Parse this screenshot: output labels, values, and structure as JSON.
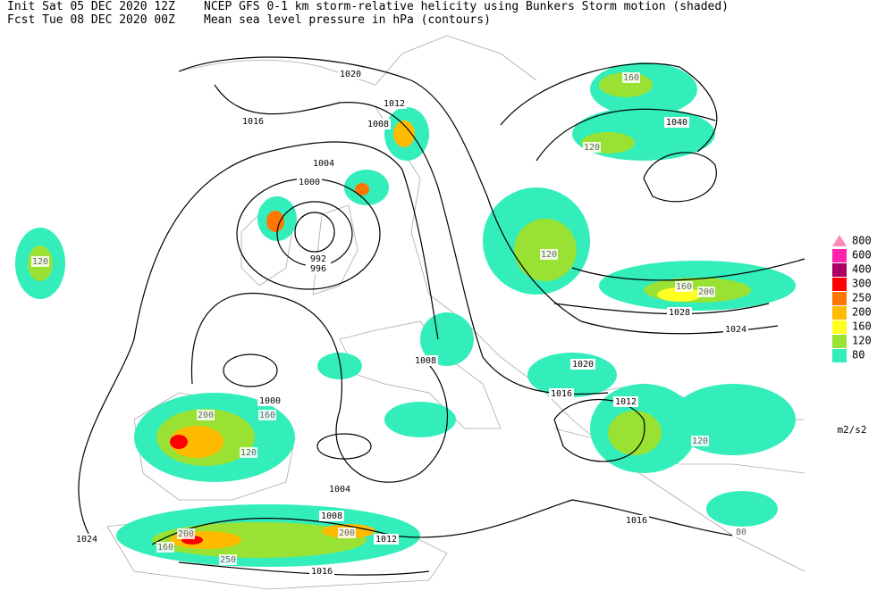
{
  "header": {
    "init": "Init  Sat 05 DEC 2020 12Z",
    "product": "NCEP GFS 0-1 km storm-relative helicity using Bunkers Storm motion (shaded)",
    "fcst": "Fcst Tue 08 DEC 2020 00Z",
    "contours": "Mean sea level pressure in hPa (contours)"
  },
  "legend": {
    "unit": "m2/s2",
    "levels": [
      {
        "value": 800,
        "color": "#ff88bb"
      },
      {
        "value": 600,
        "color": "#ff22aa"
      },
      {
        "value": 400,
        "color": "#aa0066"
      },
      {
        "value": 300,
        "color": "#ff0000"
      },
      {
        "value": 250,
        "color": "#ff7700"
      },
      {
        "value": 200,
        "color": "#ffbb00"
      },
      {
        "value": 160,
        "color": "#ffff22"
      },
      {
        "value": 120,
        "color": "#99e233"
      },
      {
        "value": 80,
        "color": "#33eebb"
      }
    ]
  },
  "contour_labels": [
    1020,
    1016,
    1012,
    1008,
    1004,
    1000,
    992,
    996,
    1040,
    1028,
    1024,
    1020,
    1016,
    1012,
    1008,
    1004,
    1000,
    1016,
    1012,
    1008,
    1024,
    1016
  ],
  "shading_labels": [
    120,
    160,
    120,
    200,
    160,
    120,
    200,
    160,
    120,
    250,
    200,
    160,
    200,
    120,
    80
  ]
}
